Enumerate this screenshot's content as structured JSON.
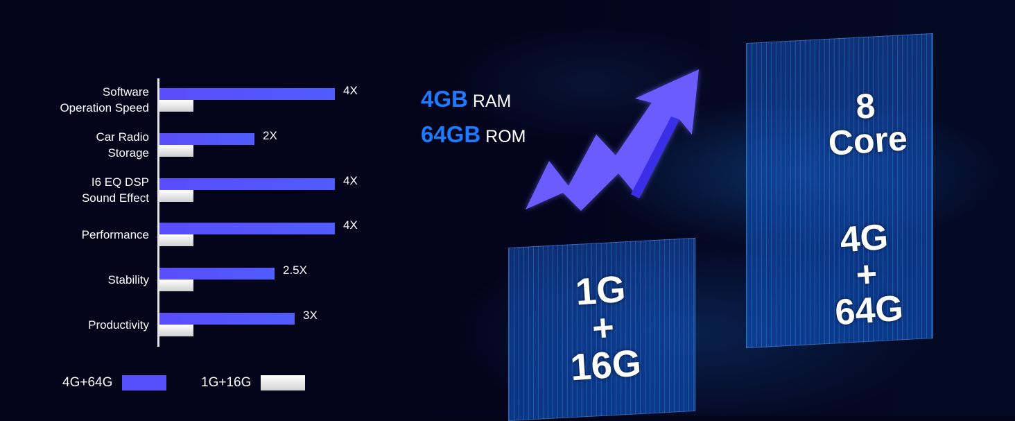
{
  "chart_data": {
    "type": "bar",
    "orientation": "horizontal",
    "categories": [
      "Software\nOperation Speed",
      "Car Radio\nStorage",
      "I6 EQ DSP\nSound Effect",
      "Performance",
      "Stability",
      "Productivity"
    ],
    "series": [
      {
        "name": "4G+64G",
        "values": [
          4,
          2,
          4,
          4,
          2.5,
          3
        ],
        "labels": [
          "4X",
          "2X",
          "4X",
          "4X",
          "2.5X",
          "3X"
        ],
        "color": "#5550fc"
      },
      {
        "name": "1G+16G",
        "values": [
          1,
          1,
          1,
          1,
          1,
          1
        ],
        "color": "#f0f0f0"
      }
    ],
    "legend_position": "bottom-left",
    "grid": false
  },
  "specs": {
    "ram_value": "4GB",
    "ram_label": "RAM",
    "rom_value": "64GB",
    "rom_label": "ROM"
  },
  "graphic": {
    "small_box": [
      "1G",
      "+",
      "16G"
    ],
    "tall_box": [
      "8",
      "Core",
      "4G",
      "+",
      "64G"
    ],
    "arrow_color": "#6a5cff"
  }
}
